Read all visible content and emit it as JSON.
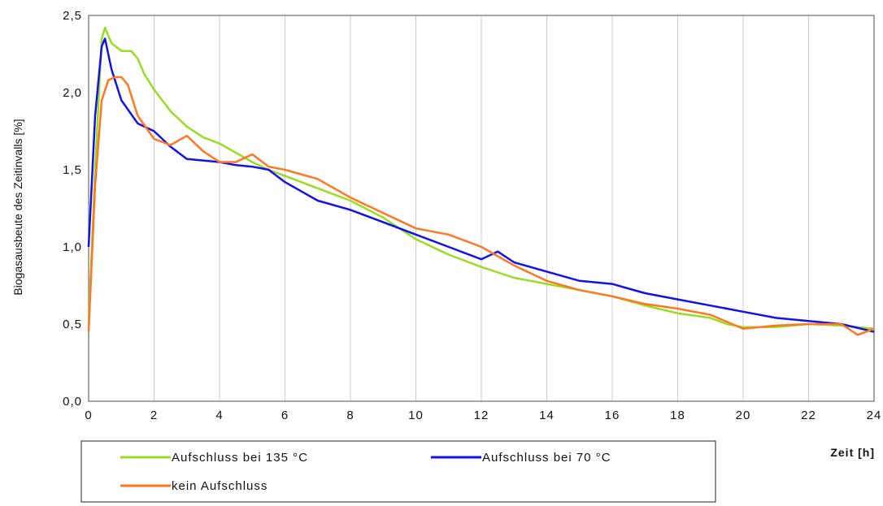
{
  "chart_data": {
    "type": "line",
    "title": "",
    "xlabel": "Zeit [h]",
    "ylabel": "Biogasausbeute des Zeitinvalls [%]",
    "xlim": [
      0,
      24
    ],
    "ylim": [
      0,
      2.5
    ],
    "x_ticks": [
      0,
      2,
      4,
      6,
      8,
      10,
      12,
      14,
      16,
      18,
      20,
      22,
      24
    ],
    "x_tick_labels": [
      "0",
      "2",
      "4",
      "6",
      "8",
      "10",
      "12",
      "14",
      "16",
      "18",
      "20",
      "22",
      "24"
    ],
    "y_ticks": [
      0,
      0.5,
      1.0,
      1.5,
      2.0,
      2.5
    ],
    "y_tick_labels": [
      "0,0",
      "0,5",
      "1,0",
      "1,5",
      "2,0",
      "2,5"
    ],
    "grid": "vertical",
    "legend_position": "bottom",
    "series": [
      {
        "name": "Aufschluss bei 135 °C",
        "color": "#99dd22",
        "points": [
          [
            0,
            0.5
          ],
          [
            0.2,
            1.5
          ],
          [
            0.4,
            2.35
          ],
          [
            0.5,
            2.42
          ],
          [
            0.7,
            2.32
          ],
          [
            1.0,
            2.27
          ],
          [
            1.3,
            2.27
          ],
          [
            1.5,
            2.22
          ],
          [
            1.7,
            2.12
          ],
          [
            2.0,
            2.02
          ],
          [
            2.5,
            1.88
          ],
          [
            3.0,
            1.78
          ],
          [
            3.5,
            1.71
          ],
          [
            4.0,
            1.67
          ],
          [
            4.5,
            1.61
          ],
          [
            5.0,
            1.55
          ],
          [
            5.5,
            1.5
          ],
          [
            6.0,
            1.46
          ],
          [
            7.0,
            1.38
          ],
          [
            8.0,
            1.3
          ],
          [
            9.0,
            1.19
          ],
          [
            10.0,
            1.05
          ],
          [
            11.0,
            0.95
          ],
          [
            12.0,
            0.87
          ],
          [
            13.0,
            0.8
          ],
          [
            14.0,
            0.76
          ],
          [
            15.0,
            0.72
          ],
          [
            16.0,
            0.68
          ],
          [
            17.0,
            0.62
          ],
          [
            18.0,
            0.57
          ],
          [
            19.0,
            0.54
          ],
          [
            19.5,
            0.5
          ],
          [
            20.0,
            0.48
          ],
          [
            21.0,
            0.48
          ],
          [
            22.0,
            0.5
          ],
          [
            23.0,
            0.49
          ],
          [
            24.0,
            0.47
          ]
        ]
      },
      {
        "name": "Aufschluss bei 70 °C",
        "color": "#1111ee",
        "points": [
          [
            0,
            1.0
          ],
          [
            0.2,
            1.85
          ],
          [
            0.4,
            2.3
          ],
          [
            0.5,
            2.35
          ],
          [
            0.7,
            2.15
          ],
          [
            1.0,
            1.95
          ],
          [
            1.5,
            1.8
          ],
          [
            2.0,
            1.75
          ],
          [
            2.5,
            1.65
          ],
          [
            3.0,
            1.57
          ],
          [
            3.5,
            1.56
          ],
          [
            4.0,
            1.55
          ],
          [
            4.5,
            1.53
          ],
          [
            5.0,
            1.52
          ],
          [
            5.5,
            1.5
          ],
          [
            6.0,
            1.42
          ],
          [
            6.5,
            1.36
          ],
          [
            7.0,
            1.3
          ],
          [
            8.0,
            1.24
          ],
          [
            9.0,
            1.16
          ],
          [
            10.0,
            1.08
          ],
          [
            11.0,
            1.0
          ],
          [
            12.0,
            0.92
          ],
          [
            12.5,
            0.97
          ],
          [
            13.0,
            0.9
          ],
          [
            14.0,
            0.84
          ],
          [
            15.0,
            0.78
          ],
          [
            16.0,
            0.76
          ],
          [
            17.0,
            0.7
          ],
          [
            18.0,
            0.66
          ],
          [
            19.0,
            0.62
          ],
          [
            20.0,
            0.58
          ],
          [
            21.0,
            0.54
          ],
          [
            22.0,
            0.52
          ],
          [
            23.0,
            0.5
          ],
          [
            24.0,
            0.45
          ]
        ]
      },
      {
        "name": "kein Aufschluss",
        "color": "#ff7722",
        "points": [
          [
            0,
            0.45
          ],
          [
            0.2,
            1.4
          ],
          [
            0.4,
            1.95
          ],
          [
            0.6,
            2.08
          ],
          [
            0.8,
            2.1
          ],
          [
            1.0,
            2.1
          ],
          [
            1.2,
            2.05
          ],
          [
            1.5,
            1.85
          ],
          [
            2.0,
            1.7
          ],
          [
            2.5,
            1.66
          ],
          [
            3.0,
            1.72
          ],
          [
            3.5,
            1.62
          ],
          [
            4.0,
            1.55
          ],
          [
            4.5,
            1.55
          ],
          [
            5.0,
            1.6
          ],
          [
            5.5,
            1.52
          ],
          [
            6.0,
            1.5
          ],
          [
            7.0,
            1.44
          ],
          [
            8.0,
            1.32
          ],
          [
            9.0,
            1.22
          ],
          [
            10.0,
            1.12
          ],
          [
            11.0,
            1.08
          ],
          [
            12.0,
            1.0
          ],
          [
            13.0,
            0.88
          ],
          [
            14.0,
            0.78
          ],
          [
            15.0,
            0.72
          ],
          [
            16.0,
            0.68
          ],
          [
            17.0,
            0.63
          ],
          [
            18.0,
            0.6
          ],
          [
            19.0,
            0.56
          ],
          [
            20.0,
            0.47
          ],
          [
            21.0,
            0.49
          ],
          [
            22.0,
            0.5
          ],
          [
            23.0,
            0.5
          ],
          [
            23.5,
            0.43
          ],
          [
            24.0,
            0.47
          ]
        ]
      }
    ]
  }
}
